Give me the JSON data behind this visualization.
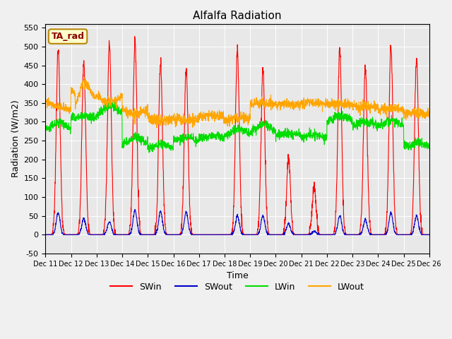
{
  "title": "Alfalfa Radiation",
  "xlabel": "Time",
  "ylabel": "Radiation (W/m2)",
  "ylim": [
    -50,
    560
  ],
  "yticks": [
    -50,
    0,
    50,
    100,
    150,
    200,
    250,
    300,
    350,
    400,
    450,
    500,
    550
  ],
  "bg_color": "#e8e8e8",
  "fig_bg": "#f0f0f0",
  "legend_label": "TA_rad",
  "series_colors": {
    "SWin": "#ff0000",
    "SWout": "#0000cc",
    "LWin": "#00dd00",
    "LWout": "#ffa500"
  },
  "linewidth": 0.8,
  "xtick_labels": [
    "Dec 11",
    "Dec 12",
    "Dec 13",
    "Dec 14",
    "Dec 15",
    "Dec 16",
    "Dec 17",
    "Dec 18",
    "Dec 19",
    "Dec 20",
    "Dec 21",
    "Dec 22",
    "Dec 23",
    "Dec 24",
    "Dec 25",
    "Dec 26"
  ],
  "n_days": 15,
  "pts_per_day": 144,
  "SWin_peaks": [
    500,
    460,
    510,
    510,
    460,
    440,
    0,
    490,
    440,
    205,
    125,
    493,
    447,
    500,
    467
  ],
  "SWout_peaks": [
    58,
    44,
    35,
    65,
    62,
    60,
    0,
    50,
    50,
    30,
    10,
    50,
    40,
    58,
    50
  ],
  "LWin_day": [
    300,
    315,
    345,
    260,
    240,
    260,
    265,
    280,
    295,
    270,
    265,
    315,
    300,
    305,
    245
  ],
  "LWin_night": [
    280,
    310,
    320,
    240,
    230,
    250,
    255,
    265,
    275,
    265,
    260,
    305,
    290,
    290,
    235
  ],
  "LWout_day": [
    330,
    345,
    355,
    320,
    305,
    305,
    315,
    310,
    350,
    345,
    350,
    350,
    340,
    335,
    325
  ],
  "LWout_night": [
    350,
    400,
    370,
    335,
    310,
    305,
    315,
    305,
    345,
    345,
    345,
    345,
    340,
    330,
    320
  ]
}
